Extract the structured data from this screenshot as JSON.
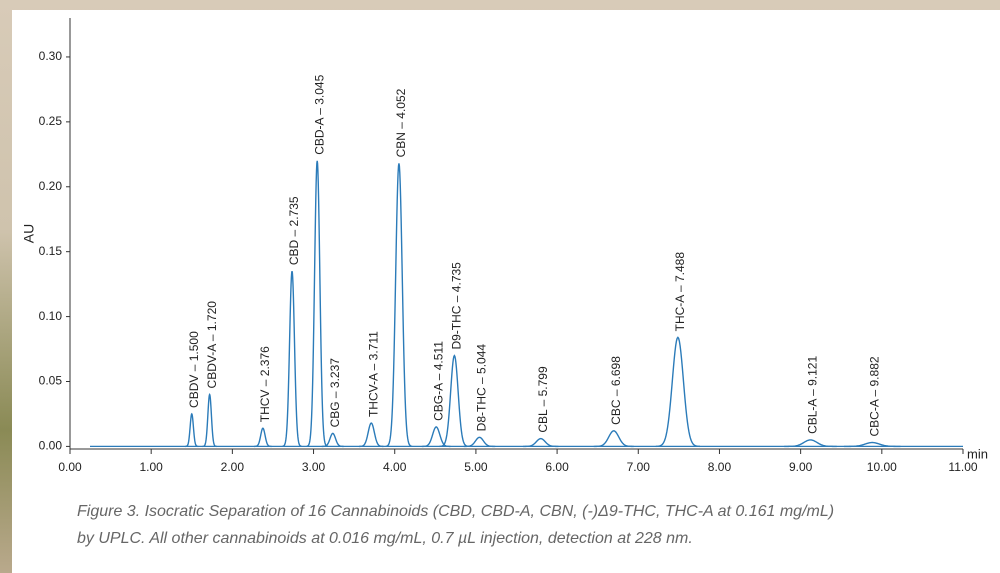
{
  "chart_data": {
    "type": "line",
    "y_label": "AU",
    "x_label": "min",
    "color": "#2b7bb9",
    "xlim": [
      0,
      11
    ],
    "ylim": [
      -0.002,
      0.33
    ],
    "xticks": [
      {
        "value": 0,
        "label": "0.00"
      },
      {
        "value": 1,
        "label": "1.00"
      },
      {
        "value": 2,
        "label": "2.00"
      },
      {
        "value": 3,
        "label": "3.00"
      },
      {
        "value": 4,
        "label": "4.00"
      },
      {
        "value": 5,
        "label": "5.00"
      },
      {
        "value": 6,
        "label": "6.00"
      },
      {
        "value": 7,
        "label": "7.00"
      },
      {
        "value": 8,
        "label": "8.00"
      },
      {
        "value": 9,
        "label": "9.00"
      },
      {
        "value": 10,
        "label": "10.00"
      },
      {
        "value": 11,
        "label": "11.00"
      }
    ],
    "yticks": [
      {
        "value": 0,
        "label": "0.00"
      },
      {
        "value": 0.05,
        "label": "0.05"
      },
      {
        "value": 0.1,
        "label": "0.10"
      },
      {
        "value": 0.15,
        "label": "0.15"
      },
      {
        "value": 0.2,
        "label": "0.20"
      },
      {
        "value": 0.25,
        "label": "0.25"
      },
      {
        "value": 0.3,
        "label": "0.30"
      }
    ],
    "peaks": [
      {
        "label": "CBDV – 1.500",
        "x": 1.5,
        "value": 0.025
      },
      {
        "label": "CBDV-A – 1.720",
        "x": 1.72,
        "value": 0.04
      },
      {
        "label": "THCV – 2.376",
        "x": 2.376,
        "value": 0.014
      },
      {
        "label": "CBD – 2.735",
        "x": 2.735,
        "value": 0.135
      },
      {
        "label": "CBD-A – 3.045",
        "x": 3.045,
        "value": 0.22
      },
      {
        "label": "CBG – 3.237",
        "x": 3.237,
        "value": 0.01
      },
      {
        "label": "THCV-A – 3.711",
        "x": 3.711,
        "value": 0.018
      },
      {
        "label": "CBN – 4.052",
        "x": 4.052,
        "value": 0.218
      },
      {
        "label": "CBG-A – 4.511",
        "x": 4.511,
        "value": 0.015
      },
      {
        "label": "D9-THC – 4.735",
        "x": 4.735,
        "value": 0.07
      },
      {
        "label": "D8-THC – 5.044",
        "x": 5.044,
        "value": 0.007
      },
      {
        "label": "CBL – 5.799",
        "x": 5.799,
        "value": 0.006
      },
      {
        "label": "CBC – 6.698",
        "x": 6.698,
        "value": 0.012
      },
      {
        "label": "THC-A – 7.488",
        "x": 7.488,
        "value": 0.084
      },
      {
        "label": "CBL-A – 9.121",
        "x": 9.121,
        "value": 0.005
      },
      {
        "label": "CBC-A – 9.882",
        "x": 9.882,
        "value": 0.003
      }
    ]
  },
  "caption": [
    "Figure 3. Isocratic Separation of 16 Cannabinoids (CBD, CBD-A, CBN, (-)Δ9-THC, THC-A at 0.161 mg/mL)",
    "by UPLC. All other cannabinoids at 0.016 mg/mL, 0.7 µL injection, detection at 228 nm."
  ]
}
